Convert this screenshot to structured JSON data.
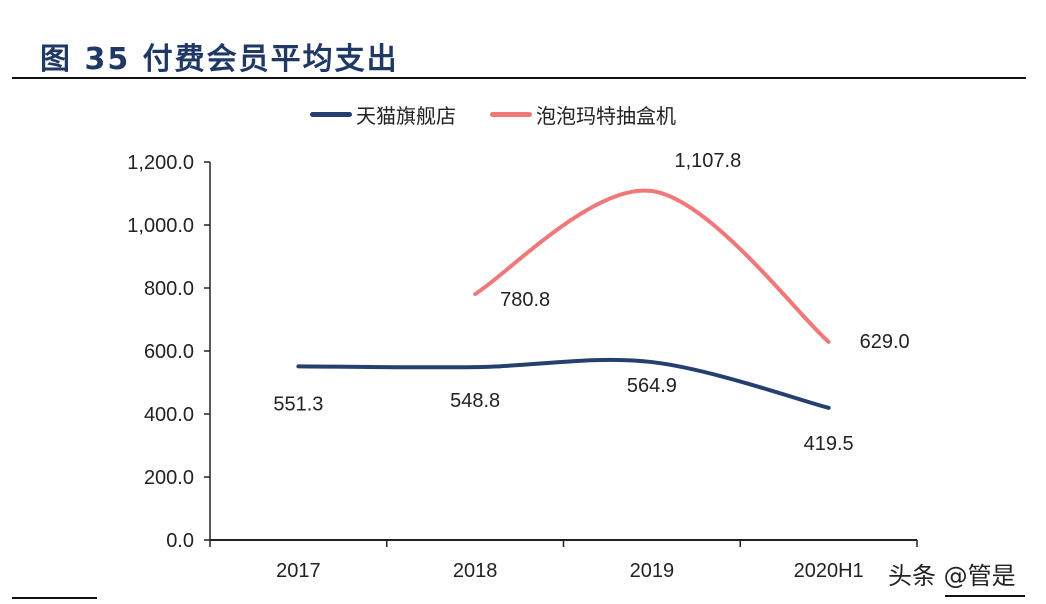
{
  "chart_data": {
    "type": "line",
    "title": "图 35 付费会员平均支出",
    "categories": [
      "2017",
      "2018",
      "2019",
      "2020H1"
    ],
    "series": [
      {
        "name": "天猫旗舰店",
        "color": "#253f6e",
        "values": [
          551.3,
          548.8,
          564.9,
          419.5
        ],
        "labels": [
          "551.3",
          "548.8",
          "564.9",
          "419.5"
        ]
      },
      {
        "name": "泡泡玛特抽盒机",
        "color": "#f07878",
        "values": [
          null,
          780.8,
          1107.8,
          629.0
        ],
        "labels": [
          null,
          "780.8",
          "1,107.8",
          "629.0"
        ]
      }
    ],
    "ylim": [
      0,
      1200
    ],
    "yticks": [
      0,
      200,
      400,
      600,
      800,
      1000,
      1200
    ],
    "ytick_labels": [
      "0.0",
      "200.0",
      "400.0",
      "600.0",
      "800.0",
      "1,000.0",
      "1,200.0"
    ],
    "legend": "top",
    "grid": false,
    "smooth": true
  },
  "watermark": "头条 @管是"
}
